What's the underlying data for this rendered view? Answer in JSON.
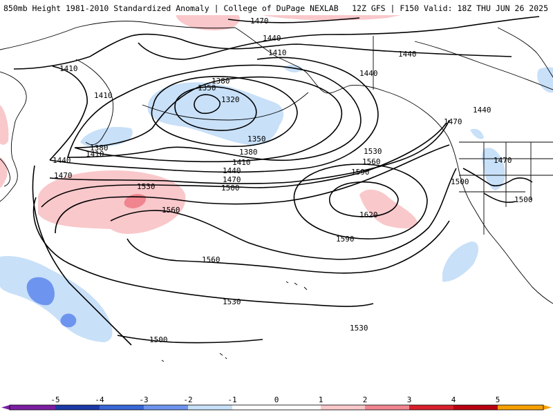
{
  "header": {
    "title_left": "850mb Height 1981-2010 Standardized Anomaly | College of DuPage NEXLAB",
    "title_right": "12Z GFS | F150 Valid: 18Z THU JUN 26 2025"
  },
  "colors": {
    "pos1": "#f9c8cb",
    "pos2": "#f08590",
    "pos3": "#d8202a",
    "pos4": "#b80010",
    "pos5": "#f5a000",
    "neg1": "#c8e0f8",
    "neg2": "#6d94ee",
    "neg3": "#3a67d6",
    "neg4": "#1c3aa8",
    "neg5": "#7b1fa2",
    "land": "#000000",
    "contour": "#000000"
  },
  "map": {
    "contour_labels": [
      {
        "id": "1470-top",
        "text": "1470"
      },
      {
        "id": "1440-upper",
        "text": "1440"
      },
      {
        "id": "1410-left",
        "text": "1410"
      },
      {
        "id": "1410-upper",
        "text": "1410"
      },
      {
        "id": "1440-mid",
        "text": "1440"
      },
      {
        "id": "1440-right",
        "text": "1440"
      },
      {
        "id": "1440-far-right",
        "text": "1440"
      },
      {
        "id": "1380-upper",
        "text": "1380"
      },
      {
        "id": "1350-upper",
        "text": "1350"
      },
      {
        "id": "1320",
        "text": "1320"
      },
      {
        "id": "1410-west",
        "text": "1410"
      },
      {
        "id": "1470-right",
        "text": "1470"
      },
      {
        "id": "1350-lower",
        "text": "1350"
      },
      {
        "id": "1380-west",
        "text": "1380"
      },
      {
        "id": "1410-west2",
        "text": "1410"
      },
      {
        "id": "1380-lower",
        "text": "1380"
      },
      {
        "id": "1440-west",
        "text": "1440"
      },
      {
        "id": "1530-east",
        "text": "1530"
      },
      {
        "id": "1410-lower",
        "text": "1410"
      },
      {
        "id": "1560-east",
        "text": "1560"
      },
      {
        "id": "1470-usa",
        "text": "1470"
      },
      {
        "id": "1440-lower",
        "text": "1440"
      },
      {
        "id": "1590-upper",
        "text": "1590"
      },
      {
        "id": "1470-west",
        "text": "1470"
      },
      {
        "id": "1470-lower",
        "text": "1470"
      },
      {
        "id": "1500-usa",
        "text": "1500"
      },
      {
        "id": "1530-west",
        "text": "1530"
      },
      {
        "id": "1500-lower",
        "text": "1500"
      },
      {
        "id": "1500-usa2",
        "text": "1500"
      },
      {
        "id": "1560-west",
        "text": "1560"
      },
      {
        "id": "1620",
        "text": "1620"
      },
      {
        "id": "1590-lower",
        "text": "1590"
      },
      {
        "id": "1560-south",
        "text": "1560"
      },
      {
        "id": "1530-south",
        "text": "1530"
      },
      {
        "id": "1530-southeast",
        "text": "1530"
      },
      {
        "id": "1500-south",
        "text": "1500"
      }
    ]
  },
  "colorbar": {
    "ticks": [
      "-5",
      "-4",
      "-3",
      "-2",
      "-1",
      "0",
      "1",
      "2",
      "3",
      "4",
      "5"
    ]
  }
}
